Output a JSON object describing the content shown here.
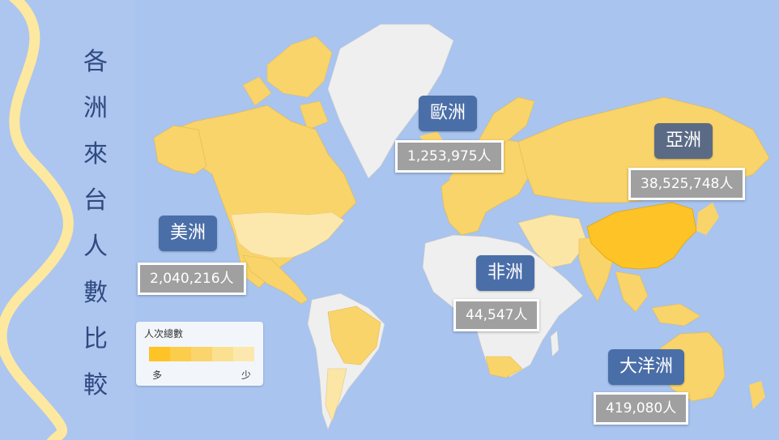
{
  "title_chars": [
    "各",
    "洲",
    "來",
    "台",
    "人",
    "數",
    "比",
    "較"
  ],
  "colors": {
    "ocean": "#a8c4ef",
    "land_high": "#fec326",
    "land_mid": "#f9d46a",
    "land_low": "#fbe6a6",
    "land_none": "#efefef",
    "label_bg": "#4a6ea8",
    "label_bg_asia": "#5b6b85",
    "value_bg": "#a0a0a0",
    "wave": "#fde8a0"
  },
  "continents": [
    {
      "id": "americas",
      "name": "美洲",
      "value": "2,040,216人"
    },
    {
      "id": "europe",
      "name": "歐洲",
      "value": "1,253,975人"
    },
    {
      "id": "asia",
      "name": "亞洲",
      "value": "38,525,748人"
    },
    {
      "id": "africa",
      "name": "非洲",
      "value": "44,547人"
    },
    {
      "id": "oceania",
      "name": "大洋洲",
      "value": "419,080人"
    }
  ],
  "legend": {
    "title": "人次總數",
    "low_label": "多",
    "high_label": "少",
    "swatches": [
      "#fec326",
      "#fbcd4a",
      "#fad56e",
      "#fbe08f",
      "#fce8ad"
    ]
  }
}
